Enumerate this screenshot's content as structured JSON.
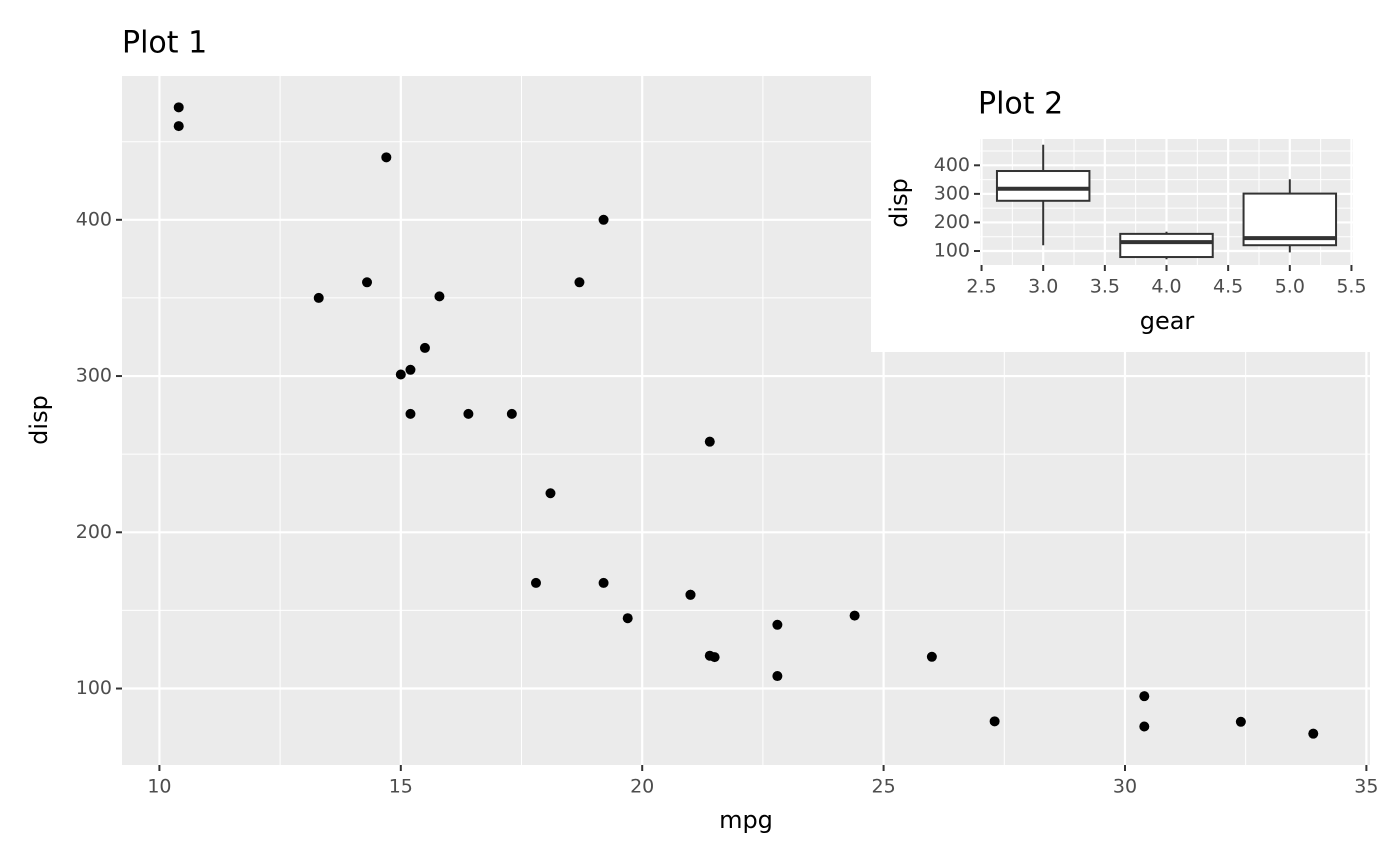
{
  "chart_data": [
    {
      "type": "scatter",
      "title": "Plot 1",
      "x_label": "mpg",
      "y_label": "disp",
      "x": [
        21.0,
        21.0,
        22.8,
        21.4,
        18.7,
        18.1,
        14.3,
        24.4,
        22.8,
        19.2,
        17.8,
        16.4,
        17.3,
        15.2,
        10.4,
        10.4,
        14.7,
        32.4,
        30.4,
        33.9,
        21.5,
        15.5,
        15.2,
        13.3,
        19.2,
        27.3,
        26.0,
        30.4,
        15.8,
        19.7,
        15.0,
        21.4
      ],
      "values": [
        160,
        160,
        108,
        258,
        360,
        225,
        360,
        146.7,
        140.8,
        167.6,
        167.6,
        275.8,
        275.8,
        275.8,
        472,
        460,
        440,
        78.7,
        75.7,
        71.1,
        120.1,
        318,
        304,
        350,
        400,
        79,
        120.3,
        95.1,
        351,
        145,
        301,
        121
      ],
      "color": "#000000",
      "xlim": [
        9.225,
        35.075
      ],
      "xticks": [
        10,
        15,
        20,
        25,
        30,
        35
      ],
      "minor_xticks": [
        12.5,
        17.5,
        22.5,
        27.5,
        32.5
      ],
      "ylim": [
        51.055,
        492.045
      ],
      "yticks": [
        100,
        200,
        300,
        400
      ],
      "minor_yticks": [
        150,
        250,
        350,
        450
      ],
      "grid": true
    },
    {
      "type": "boxplot",
      "title": "Plot 2",
      "x_label": "gear",
      "y_label": "disp",
      "x": [
        3,
        4,
        5
      ],
      "min": [
        120.1,
        71.1,
        95.1
      ],
      "q1": [
        275.8,
        78.925,
        120.3
      ],
      "median": [
        318,
        130.9,
        145
      ],
      "q3": [
        380,
        160,
        301
      ],
      "max": [
        472,
        167.6,
        351
      ],
      "xlim": [
        2.4875,
        5.5125
      ],
      "xticks": [
        2.5,
        {
          "value": 3,
          "label": "3.0"
        },
        3.5,
        {
          "value": 4,
          "label": "4.0"
        },
        4.5,
        {
          "value": 5,
          "label": "5.0"
        },
        5.5
      ],
      "minor_xticks": [
        2.75,
        3.25,
        3.75,
        4.25,
        4.75,
        5.25
      ],
      "ylim": [
        51.055,
        492.045
      ],
      "yticks": [
        100,
        200,
        300,
        400
      ],
      "minor_yticks": [
        150,
        250,
        350,
        450
      ],
      "grid": true
    }
  ]
}
